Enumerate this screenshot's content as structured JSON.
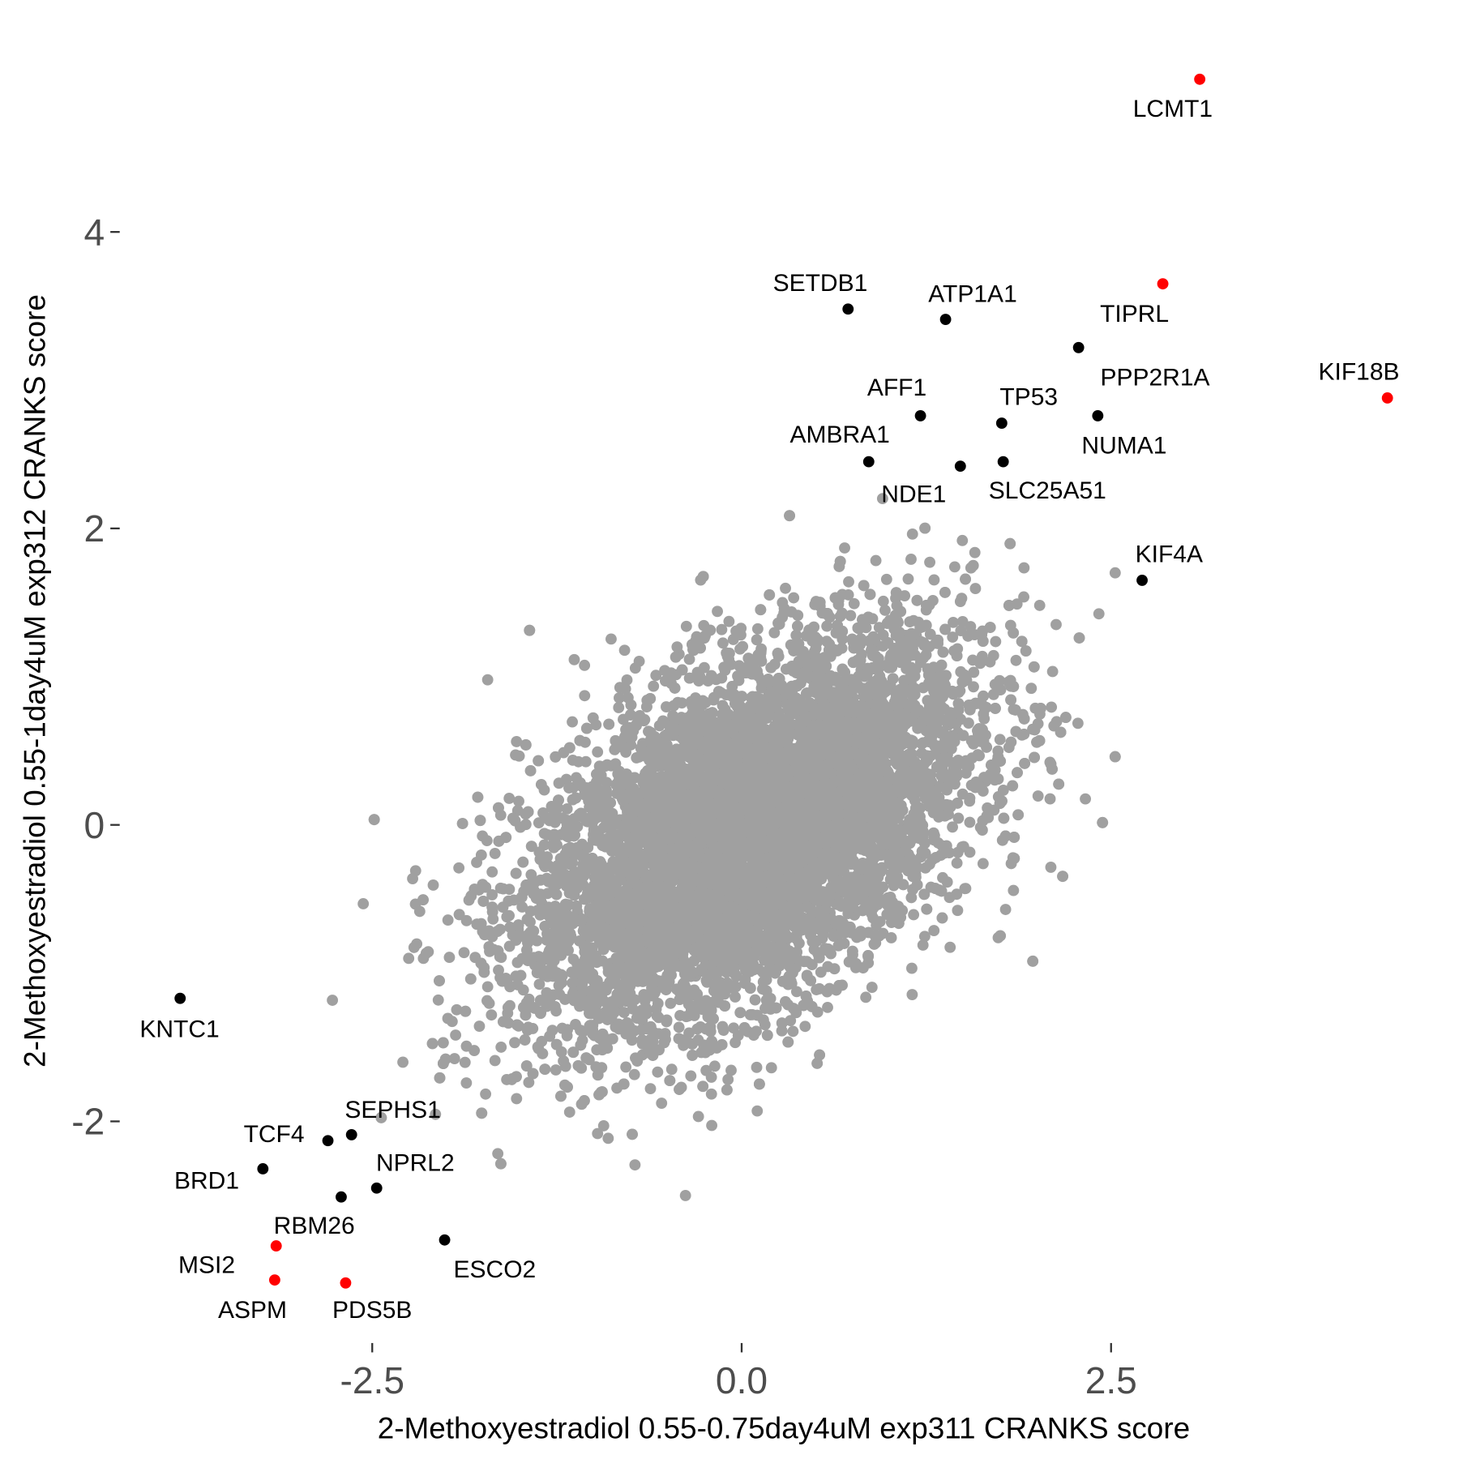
{
  "chart_data": {
    "type": "scatter",
    "title": "",
    "xlabel": "2-Methoxyestradiol 0.55-0.75day4uM exp311 CRANKS score",
    "ylabel": "2-Methoxyestradiol 0.55-1day4uM exp312 CRANKS score",
    "xlim": [
      -4.8,
      4.6
    ],
    "ylim": [
      -3.4,
      5.5
    ],
    "x_ticks": [
      -2.5,
      0.0,
      2.5
    ],
    "x_tick_labels": [
      "-2.5",
      "0.0",
      "2.5"
    ],
    "y_ticks": [
      -2,
      0,
      2,
      4
    ],
    "y_tick_labels": [
      "-2",
      "0",
      "2",
      "4"
    ],
    "grid": false,
    "background_points": {
      "color": "#a0a0a0",
      "description_center": [
        0.05,
        -0.05
      ],
      "sd": [
        0.75,
        0.65
      ],
      "correlation": 0.5
    },
    "colors": {
      "background": "#a0a0a0",
      "highlight": "#ff0000",
      "labeled": "#000000"
    },
    "points": [
      {
        "label": "LCMT1",
        "x": 3.1,
        "y": 5.03,
        "color": "#ff0000"
      },
      {
        "label": "TIPRL",
        "x": 2.85,
        "y": 3.65,
        "color": "#ff0000"
      },
      {
        "label": "KIF18B",
        "x": 4.37,
        "y": 2.88,
        "color": "#ff0000"
      },
      {
        "label": "SETDB1",
        "x": 0.72,
        "y": 3.48,
        "color": "#000000"
      },
      {
        "label": "ATP1A1",
        "x": 1.38,
        "y": 3.41,
        "color": "#000000"
      },
      {
        "label": "PPP2R1A",
        "x": 2.28,
        "y": 3.22,
        "color": "#000000"
      },
      {
        "label": "AFF1",
        "x": 1.21,
        "y": 2.76,
        "color": "#000000"
      },
      {
        "label": "TP53",
        "x": 1.76,
        "y": 2.71,
        "color": "#000000"
      },
      {
        "label": "NUMA1",
        "x": 2.41,
        "y": 2.76,
        "color": "#000000"
      },
      {
        "label": "AMBRA1",
        "x": 0.86,
        "y": 2.45,
        "color": "#000000"
      },
      {
        "label": "NDE1",
        "x": 1.48,
        "y": 2.42,
        "color": "#000000"
      },
      {
        "label": "SLC25A51",
        "x": 1.77,
        "y": 2.45,
        "color": "#000000"
      },
      {
        "label": "KIF4A",
        "x": 2.71,
        "y": 1.65,
        "color": "#000000"
      },
      {
        "label": "KNTC1",
        "x": -3.8,
        "y": -1.17,
        "color": "#000000"
      },
      {
        "label": "SEPHS1",
        "x": -2.64,
        "y": -2.09,
        "color": "#000000"
      },
      {
        "label": "TCF4",
        "x": -2.8,
        "y": -2.13,
        "color": "#000000"
      },
      {
        "label": "BRD1",
        "x": -3.24,
        "y": -2.32,
        "color": "#000000"
      },
      {
        "label": "NPRL2",
        "x": -2.47,
        "y": -2.45,
        "color": "#000000"
      },
      {
        "label": "RBM26",
        "x": -2.71,
        "y": -2.51,
        "color": "#000000"
      },
      {
        "label": "ESCO2",
        "x": -2.01,
        "y": -2.8,
        "color": "#000000"
      },
      {
        "label": "MSI2",
        "x": -3.15,
        "y": -2.84,
        "color": "#ff0000"
      },
      {
        "label": "ASPM",
        "x": -3.16,
        "y": -3.07,
        "color": "#ff0000"
      },
      {
        "label": "PDS5B",
        "x": -2.68,
        "y": -3.09,
        "color": "#ff0000"
      }
    ]
  }
}
